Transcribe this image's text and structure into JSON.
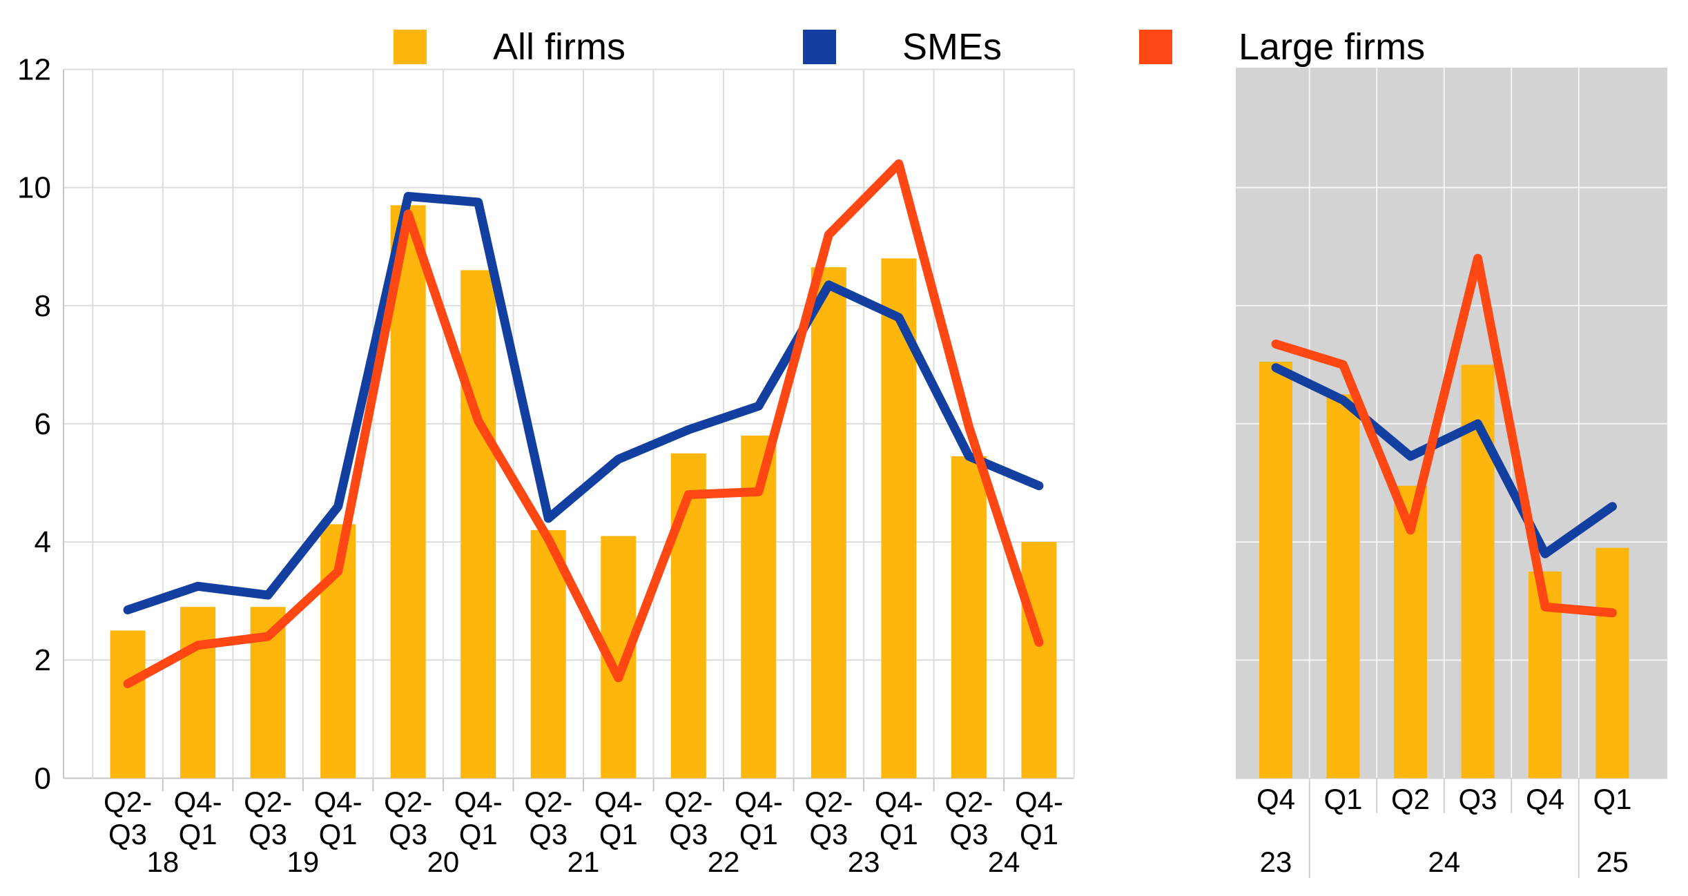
{
  "legend": {
    "items": [
      {
        "label": "All firms",
        "color": "#FEB60D",
        "marker": "bar"
      },
      {
        "label": "SMEs",
        "color": "#1340A0",
        "marker": "line"
      },
      {
        "label": "Large firms",
        "color": "#FF4713",
        "marker": "line"
      }
    ]
  },
  "y_axis": {
    "ticks": [
      0,
      2,
      4,
      6,
      8,
      10,
      12
    ],
    "min": 0,
    "max": 12
  },
  "chart_data": [
    {
      "type": "bar+line",
      "panel": "main",
      "title": "",
      "xlabel": "",
      "ylabel": "",
      "ylim": [
        0,
        12
      ],
      "grid": true,
      "legend_position": "top",
      "categories": [
        [
          "Q2-",
          "Q3"
        ],
        [
          "Q4-",
          "Q1"
        ],
        [
          "Q2-",
          "Q3"
        ],
        [
          "Q4-",
          "Q1"
        ],
        [
          "Q2-",
          "Q3"
        ],
        [
          "Q4-",
          "Q1"
        ],
        [
          "Q2-",
          "Q3"
        ],
        [
          "Q4-",
          "Q1"
        ],
        [
          "Q2-",
          "Q3"
        ],
        [
          "Q4-",
          "Q1"
        ],
        [
          "Q2-",
          "Q3"
        ],
        [
          "Q4-",
          "Q1"
        ],
        [
          "Q2-",
          "Q3"
        ],
        [
          "Q4-",
          "Q1"
        ]
      ],
      "year_labels": [
        {
          "label": "18",
          "pos": 0.5
        },
        {
          "label": "19",
          "pos": 2.5
        },
        {
          "label": "20",
          "pos": 4.5
        },
        {
          "label": "21",
          "pos": 6.5
        },
        {
          "label": "22",
          "pos": 8.5
        },
        {
          "label": "23",
          "pos": 10.5
        },
        {
          "label": "24",
          "pos": 12.5
        }
      ],
      "series": [
        {
          "name": "All firms",
          "kind": "bar",
          "values": [
            2.5,
            2.9,
            2.9,
            4.3,
            9.7,
            8.6,
            4.2,
            4.1,
            5.5,
            5.8,
            8.65,
            8.8,
            5.45,
            4.0
          ]
        },
        {
          "name": "SMEs",
          "kind": "line",
          "values": [
            2.85,
            3.25,
            3.1,
            4.6,
            9.85,
            9.75,
            4.4,
            5.4,
            5.9,
            6.3,
            8.35,
            7.8,
            5.45,
            4.95
          ]
        },
        {
          "name": "Large firms",
          "kind": "line",
          "values": [
            1.6,
            2.25,
            2.4,
            3.5,
            9.55,
            6.05,
            4.05,
            1.7,
            4.8,
            4.85,
            9.2,
            10.4,
            5.95,
            2.3
          ]
        }
      ]
    },
    {
      "type": "bar+line",
      "panel": "inset-recent-quarters",
      "title": "",
      "xlabel": "",
      "ylabel": "",
      "ylim": [
        0,
        12
      ],
      "grid": true,
      "background": "#D3D3D3",
      "categories": [
        "Q4",
        "Q1",
        "Q2",
        "Q3",
        "Q4",
        "Q1"
      ],
      "year_labels": [
        {
          "label": "23",
          "pos": 0
        },
        {
          "label": "24",
          "pos": 2.5
        },
        {
          "label": "25",
          "pos": 5
        }
      ],
      "series": [
        {
          "name": "All firms",
          "kind": "bar",
          "values": [
            7.05,
            6.5,
            4.95,
            7.0,
            3.5,
            3.9
          ]
        },
        {
          "name": "SMEs",
          "kind": "line",
          "values": [
            6.95,
            6.4,
            5.45,
            6.0,
            3.8,
            4.6
          ]
        },
        {
          "name": "Large firms",
          "kind": "line",
          "values": [
            7.35,
            7.0,
            4.2,
            8.8,
            2.9,
            2.8
          ]
        }
      ]
    }
  ]
}
